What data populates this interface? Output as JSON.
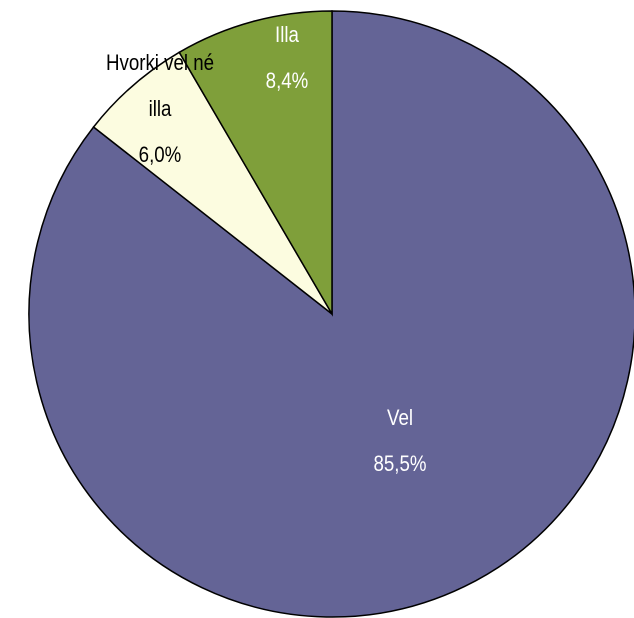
{
  "chart_data": {
    "type": "pie",
    "categories": [
      "Vel",
      "Hvorki vel né illa",
      "Illa"
    ],
    "values": [
      85.5,
      6.0,
      8.4
    ],
    "value_labels": [
      "85,5%",
      "6,0%",
      "8,4%"
    ],
    "colors": [
      "#646496",
      "#fcfce0",
      "#7f9f3a"
    ]
  }
}
